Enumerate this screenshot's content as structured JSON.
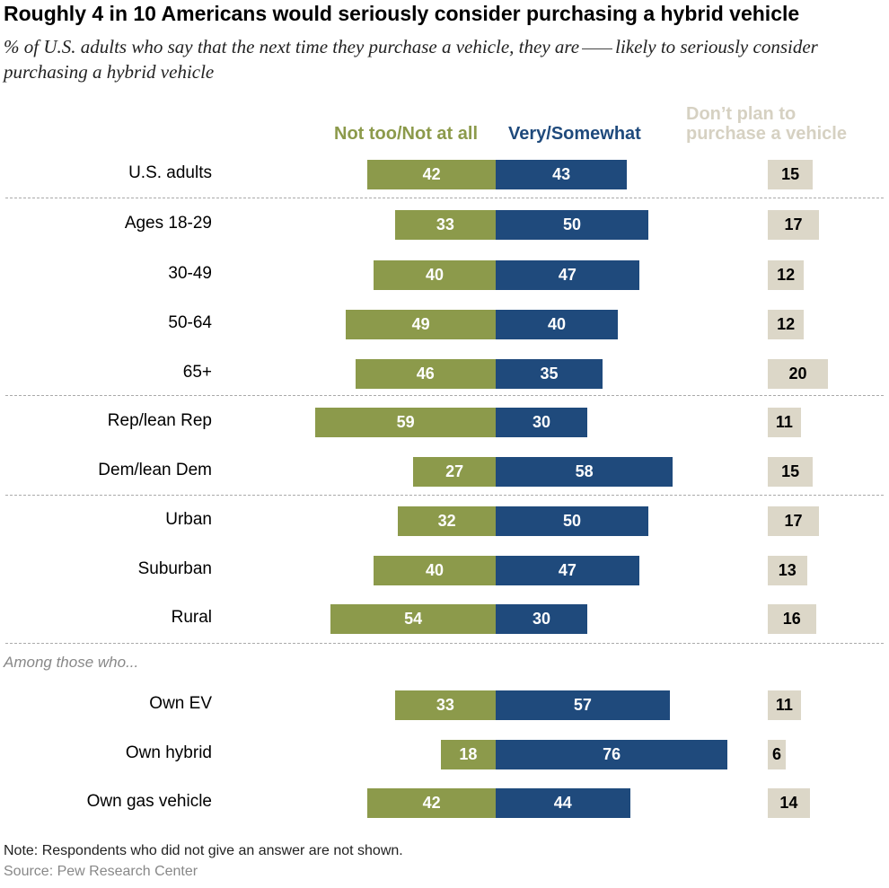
{
  "chart_data": {
    "type": "bar",
    "title": "Roughly 4 in 10 Americans would seriously consider purchasing a hybrid vehicle",
    "subtitle_before": "% of U.S. adults who say that the next time they purchase a vehicle, they are",
    "subtitle_after": "likely to seriously consider purchasing a hybrid vehicle",
    "legend": {
      "neg": "Not too/Not at all",
      "pos": "Very/Somewhat",
      "np_line1": "Don’t plan to",
      "np_line2": "purchase a vehicle"
    },
    "section_label": "Among those who...",
    "colors": {
      "neg": "#8c9a4b",
      "pos": "#1f4a7c",
      "np": "#dcd7c8"
    },
    "categories": [
      "U.S. adults",
      "Ages 18-29",
      "30-49",
      "50-64",
      "65+",
      "Rep/lean Rep",
      "Dem/lean Dem",
      "Urban",
      "Suburban",
      "Rural",
      "Own EV",
      "Own hybrid",
      "Own gas vehicle"
    ],
    "series": [
      {
        "name": "Not too/Not at all",
        "values": [
          42,
          33,
          40,
          49,
          46,
          59,
          27,
          32,
          40,
          54,
          33,
          18,
          42
        ]
      },
      {
        "name": "Very/Somewhat",
        "values": [
          43,
          50,
          47,
          40,
          35,
          30,
          58,
          50,
          47,
          30,
          57,
          76,
          44
        ]
      },
      {
        "name": "Don’t plan to purchase a vehicle",
        "values": [
          15,
          17,
          12,
          12,
          20,
          11,
          15,
          17,
          13,
          16,
          11,
          6,
          14
        ]
      }
    ],
    "note": "Note: Respondents who did not give an answer are not shown.",
    "source": "Source: Pew Research Center"
  }
}
